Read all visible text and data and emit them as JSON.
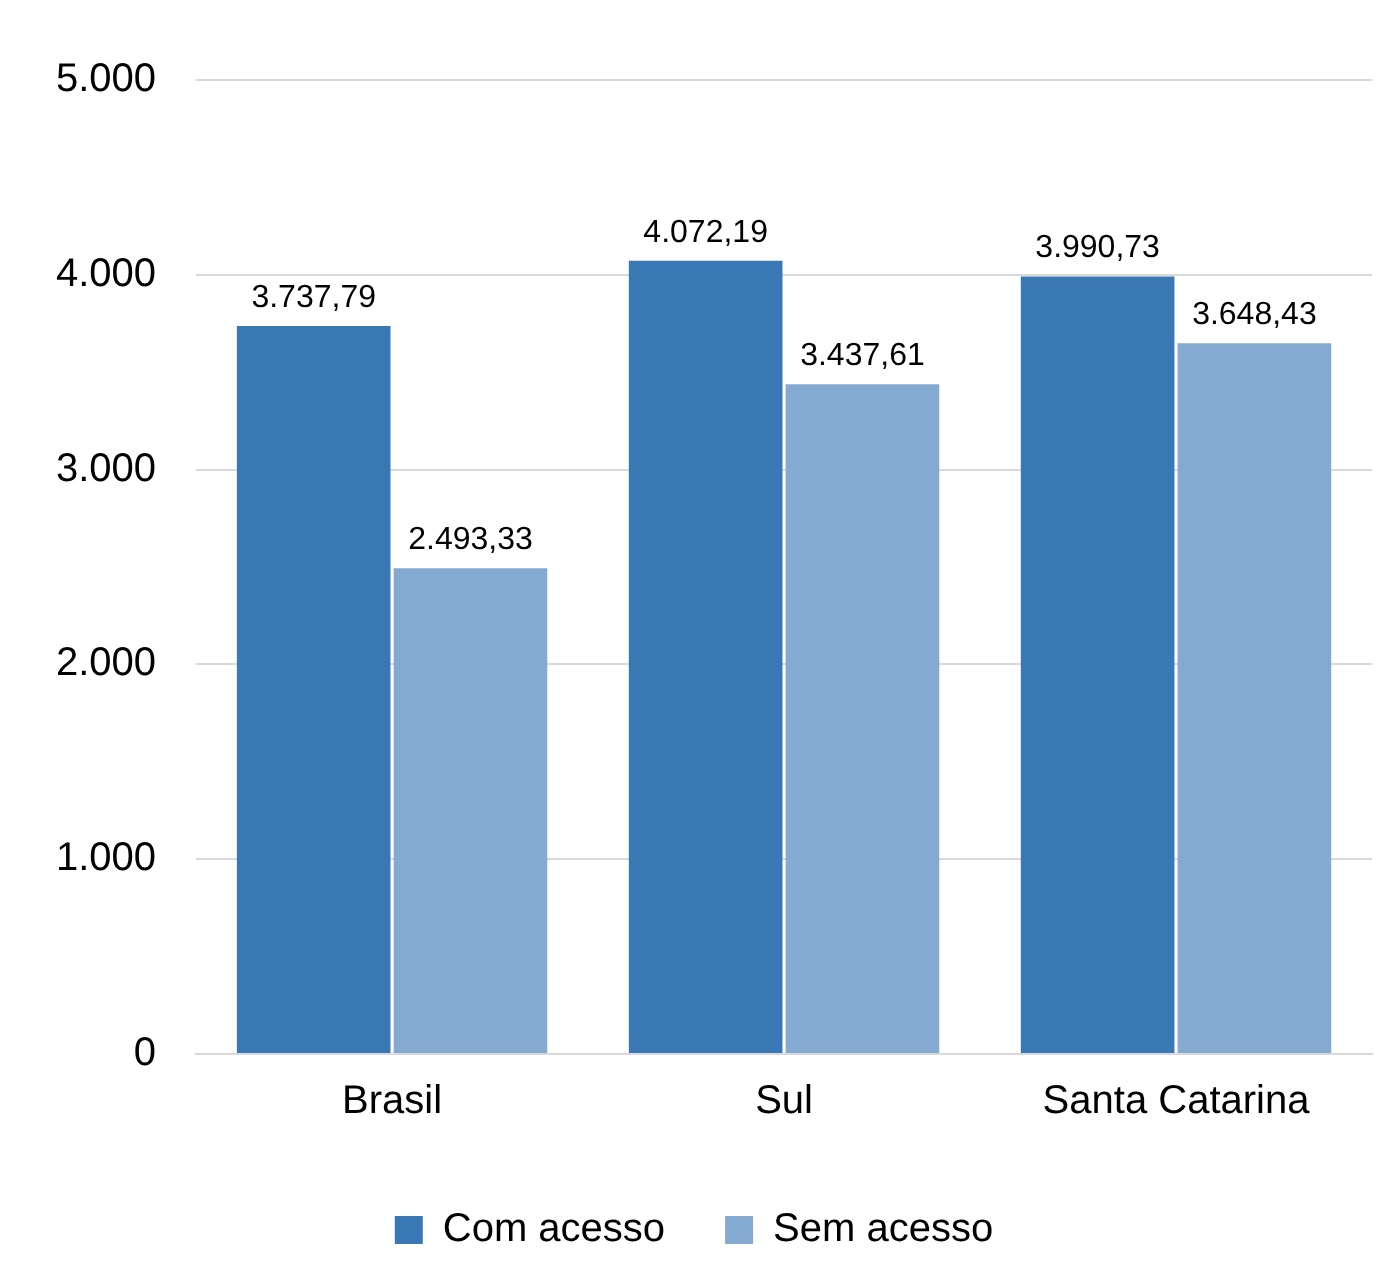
{
  "chart_data": {
    "type": "bar",
    "categories": [
      "Brasil",
      "Sul",
      "Santa Catarina"
    ],
    "series": [
      {
        "name": "Com acesso",
        "color": "#3a78b5",
        "values": [
          3737.79,
          4072.19,
          3990.73
        ],
        "value_labels": [
          "3.737,79",
          "4.072,19",
          "3.990,73"
        ]
      },
      {
        "name": "Sem acesso",
        "color": "#85aad1",
        "values": [
          2493.33,
          3437.61,
          3648.43
        ],
        "value_labels": [
          "2.493,33",
          "3.437,61",
          "3.648,43"
        ]
      }
    ],
    "ylim": [
      0,
      5000
    ],
    "yticks": [
      {
        "value": 0,
        "label": "0"
      },
      {
        "value": 1000,
        "label": "1.000"
      },
      {
        "value": 2000,
        "label": "2.000"
      },
      {
        "value": 3000,
        "label": "3.000"
      },
      {
        "value": 4000,
        "label": "4.000"
      },
      {
        "value": 5000,
        "label": "5.000"
      }
    ],
    "grid": "y",
    "legend": "bottom"
  }
}
